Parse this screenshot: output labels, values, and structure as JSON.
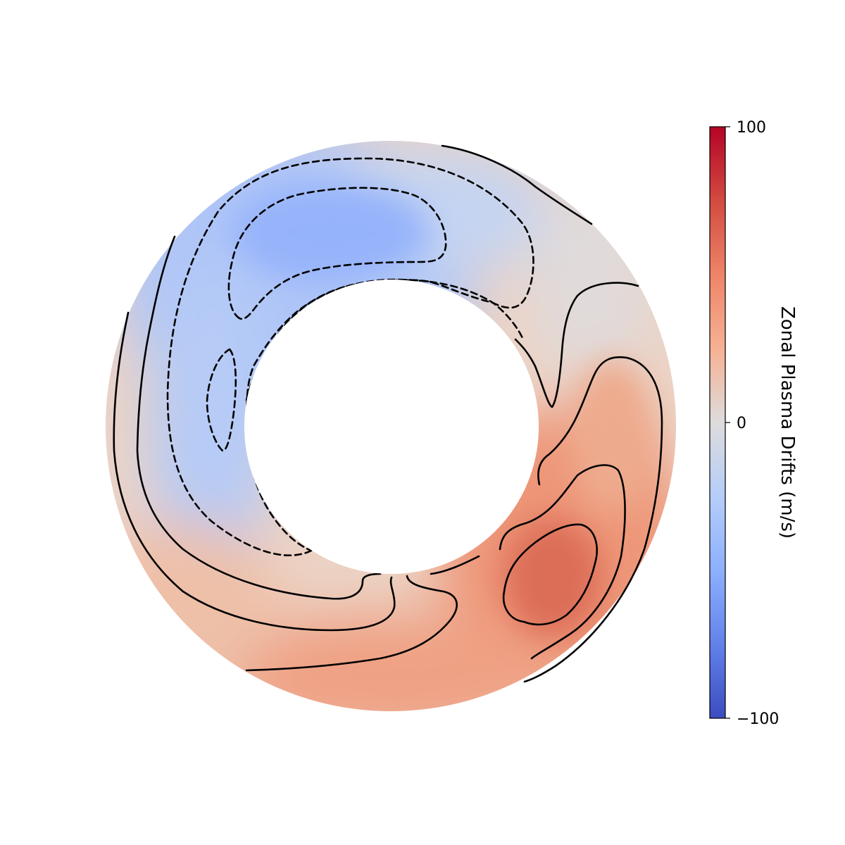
{
  "chart_data": {
    "type": "heatmap",
    "subtype": "polar annular contour plot",
    "colormap": "coolwarm",
    "colorbar": {
      "label": "Zonal Plasma Drifts (m/s)",
      "ticks": [
        {
          "value": 100,
          "label": "100"
        },
        {
          "value": 0,
          "label": "0"
        },
        {
          "value": -100,
          "label": "−100"
        }
      ],
      "vmin": -100,
      "vmax": 100,
      "orientation": "vertical",
      "placement": "right"
    },
    "contour_style": {
      "positive": "solid",
      "negative": "dashed",
      "color": "#000000"
    },
    "field_extrema": {
      "negative_core_value": -42,
      "positive_core_value": 70
    }
  }
}
